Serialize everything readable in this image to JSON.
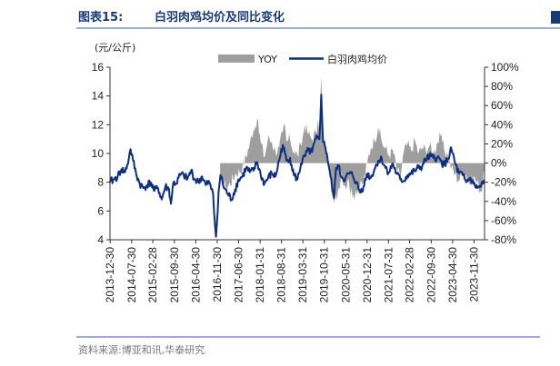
{
  "header": {
    "figure_label": "图表15:",
    "title": "白羽肉鸡均价及同比变化"
  },
  "footer": {
    "source": "资料来源:博亚和讯,华泰研究"
  },
  "colors": {
    "title": "#1a3a75",
    "price_line": "#0d2f7f",
    "yoy_area": "#9e9e9e",
    "axis": "#333333",
    "divider": "#3a5fa0"
  },
  "chart_data": {
    "type": "line",
    "title": "白羽肉鸡均价及同比变化",
    "unit_label": "(元/公斤)",
    "legend": [
      "YOY",
      "白羽肉鸡均价"
    ],
    "legend_position": "top-center",
    "grid": false,
    "y_left": {
      "min": 4,
      "max": 16,
      "ticks": [
        "4",
        "6",
        "8",
        "10",
        "12",
        "14",
        "16"
      ]
    },
    "y_right": {
      "min": -80,
      "max": 100,
      "ticks": [
        "-80%",
        "-60%",
        "-40%",
        "-20%",
        "0%",
        "20%",
        "40%",
        "60%",
        "80%",
        "100%"
      ]
    },
    "x_ticks": [
      "2013-12-30",
      "2014-07-30",
      "2015-02-28",
      "2015-09-30",
      "2016-04-30",
      "2016-11-30",
      "2017-06-30",
      "2018-01-31",
      "2018-08-31",
      "2019-03-31",
      "2019-10-31",
      "2020-05-31",
      "2020-12-31",
      "2021-07-31",
      "2022-02-28",
      "2022-09-30",
      "2023-04-30",
      "2023-11-30"
    ],
    "x_range": [
      2013.99,
      2024.2
    ],
    "series": [
      {
        "name": "白羽肉鸡均价",
        "axis": "left",
        "x": [
          2013.99,
          2014.1,
          2014.2,
          2014.3,
          2014.4,
          2014.5,
          2014.55,
          2014.62,
          2014.7,
          2014.8,
          2014.9,
          2015.0,
          2015.1,
          2015.2,
          2015.3,
          2015.4,
          2015.5,
          2015.6,
          2015.65,
          2015.72,
          2015.8,
          2015.9,
          2016.0,
          2016.1,
          2016.2,
          2016.3,
          2016.4,
          2016.5,
          2016.6,
          2016.7,
          2016.75,
          2016.8,
          2016.83,
          2016.88,
          2016.95,
          2017.0,
          2017.1,
          2017.2,
          2017.3,
          2017.4,
          2017.5,
          2017.6,
          2017.7,
          2017.8,
          2017.9,
          2018.0,
          2018.1,
          2018.2,
          2018.3,
          2018.4,
          2018.5,
          2018.6,
          2018.7,
          2018.8,
          2018.9,
          2019.0,
          2019.1,
          2019.2,
          2019.3,
          2019.4,
          2019.5,
          2019.6,
          2019.7,
          2019.75,
          2019.8,
          2019.85,
          2019.9,
          2020.0,
          2020.05,
          2020.1,
          2020.15,
          2020.2,
          2020.3,
          2020.4,
          2020.5,
          2020.6,
          2020.7,
          2020.8,
          2020.9,
          2021.0,
          2021.1,
          2021.2,
          2021.3,
          2021.4,
          2021.5,
          2021.6,
          2021.7,
          2021.8,
          2021.9,
          2022.0,
          2022.1,
          2022.2,
          2022.3,
          2022.4,
          2022.5,
          2022.6,
          2022.7,
          2022.8,
          2022.9,
          2023.0,
          2023.1,
          2023.2,
          2023.3,
          2023.4,
          2023.5,
          2023.6,
          2023.7,
          2023.8,
          2023.9,
          2024.0,
          2024.1,
          2024.2
        ],
        "values": [
          8.0,
          8.2,
          8.4,
          8.9,
          8.7,
          9.6,
          10.3,
          9.5,
          8.6,
          7.9,
          7.6,
          7.8,
          8.0,
          7.4,
          7.6,
          6.8,
          7.7,
          7.5,
          6.5,
          8.0,
          7.9,
          8.5,
          8.5,
          8.2,
          8.8,
          8.2,
          8.0,
          8.4,
          7.8,
          8.0,
          7.5,
          7.2,
          5.8,
          4.2,
          7.3,
          8.5,
          7.6,
          7.2,
          6.8,
          7.5,
          8.2,
          8.4,
          9.0,
          8.7,
          8.8,
          9.4,
          8.5,
          7.9,
          8.3,
          8.6,
          8.4,
          9.5,
          10.6,
          9.5,
          9.7,
          8.5,
          8.2,
          9.3,
          9.8,
          10.2,
          10.1,
          11.0,
          11.0,
          14.1,
          10.8,
          10.5,
          10.0,
          8.4,
          7.6,
          6.9,
          9.0,
          9.2,
          8.4,
          8.2,
          8.6,
          8.5,
          8.0,
          7.3,
          7.7,
          8.6,
          8.3,
          8.9,
          9.5,
          9.6,
          9.0,
          8.7,
          9.3,
          8.6,
          8.2,
          8.1,
          8.5,
          8.6,
          8.8,
          9.0,
          9.1,
          9.6,
          9.8,
          9.7,
          9.7,
          9.5,
          9.2,
          9.6,
          10.3,
          9.3,
          8.6,
          8.5,
          8.0,
          8.3,
          7.9,
          7.6,
          7.7,
          8.1
        ]
      },
      {
        "name": "YOY",
        "axis": "right",
        "x": [
          2016.99,
          2017.2,
          2017.4,
          2017.6,
          2017.8,
          2017.9,
          2018.0,
          2018.1,
          2018.2,
          2018.3,
          2018.4,
          2018.5,
          2018.6,
          2018.7,
          2018.75,
          2018.8,
          2018.9,
          2019.0,
          2019.1,
          2019.2,
          2019.3,
          2019.4,
          2019.5,
          2019.6,
          2019.7,
          2019.75,
          2019.8,
          2019.9,
          2020.0,
          2020.1,
          2020.2,
          2020.3,
          2020.4,
          2020.5,
          2020.6,
          2020.7,
          2020.8,
          2020.9,
          2021.0,
          2021.1,
          2021.2,
          2021.3,
          2021.4,
          2021.5,
          2021.6,
          2021.7,
          2021.8,
          2021.9,
          2022.0,
          2022.1,
          2022.2,
          2022.3,
          2022.4,
          2022.5,
          2022.6,
          2022.7,
          2022.8,
          2022.9,
          2023.0,
          2023.1,
          2023.2,
          2023.3,
          2023.4,
          2023.5,
          2023.6,
          2023.7,
          2023.8,
          2023.9,
          2024.0,
          2024.1,
          2024.2
        ],
        "values": [
          -20,
          -25,
          -12,
          -5,
          20,
          35,
          45,
          22,
          6,
          26,
          22,
          12,
          16,
          32,
          40,
          22,
          25,
          12,
          8,
          18,
          40,
          30,
          25,
          32,
          45,
          90,
          22,
          12,
          -20,
          -42,
          -30,
          -10,
          -24,
          -18,
          -36,
          -28,
          -26,
          -20,
          0,
          16,
          24,
          38,
          22,
          15,
          8,
          14,
          -5,
          -15,
          12,
          20,
          12,
          24,
          10,
          16,
          14,
          18,
          10,
          20,
          28,
          14,
          8,
          -5,
          -12,
          -18,
          -10,
          -12,
          -22,
          -15,
          -20,
          -30,
          -10
        ]
      }
    ]
  }
}
